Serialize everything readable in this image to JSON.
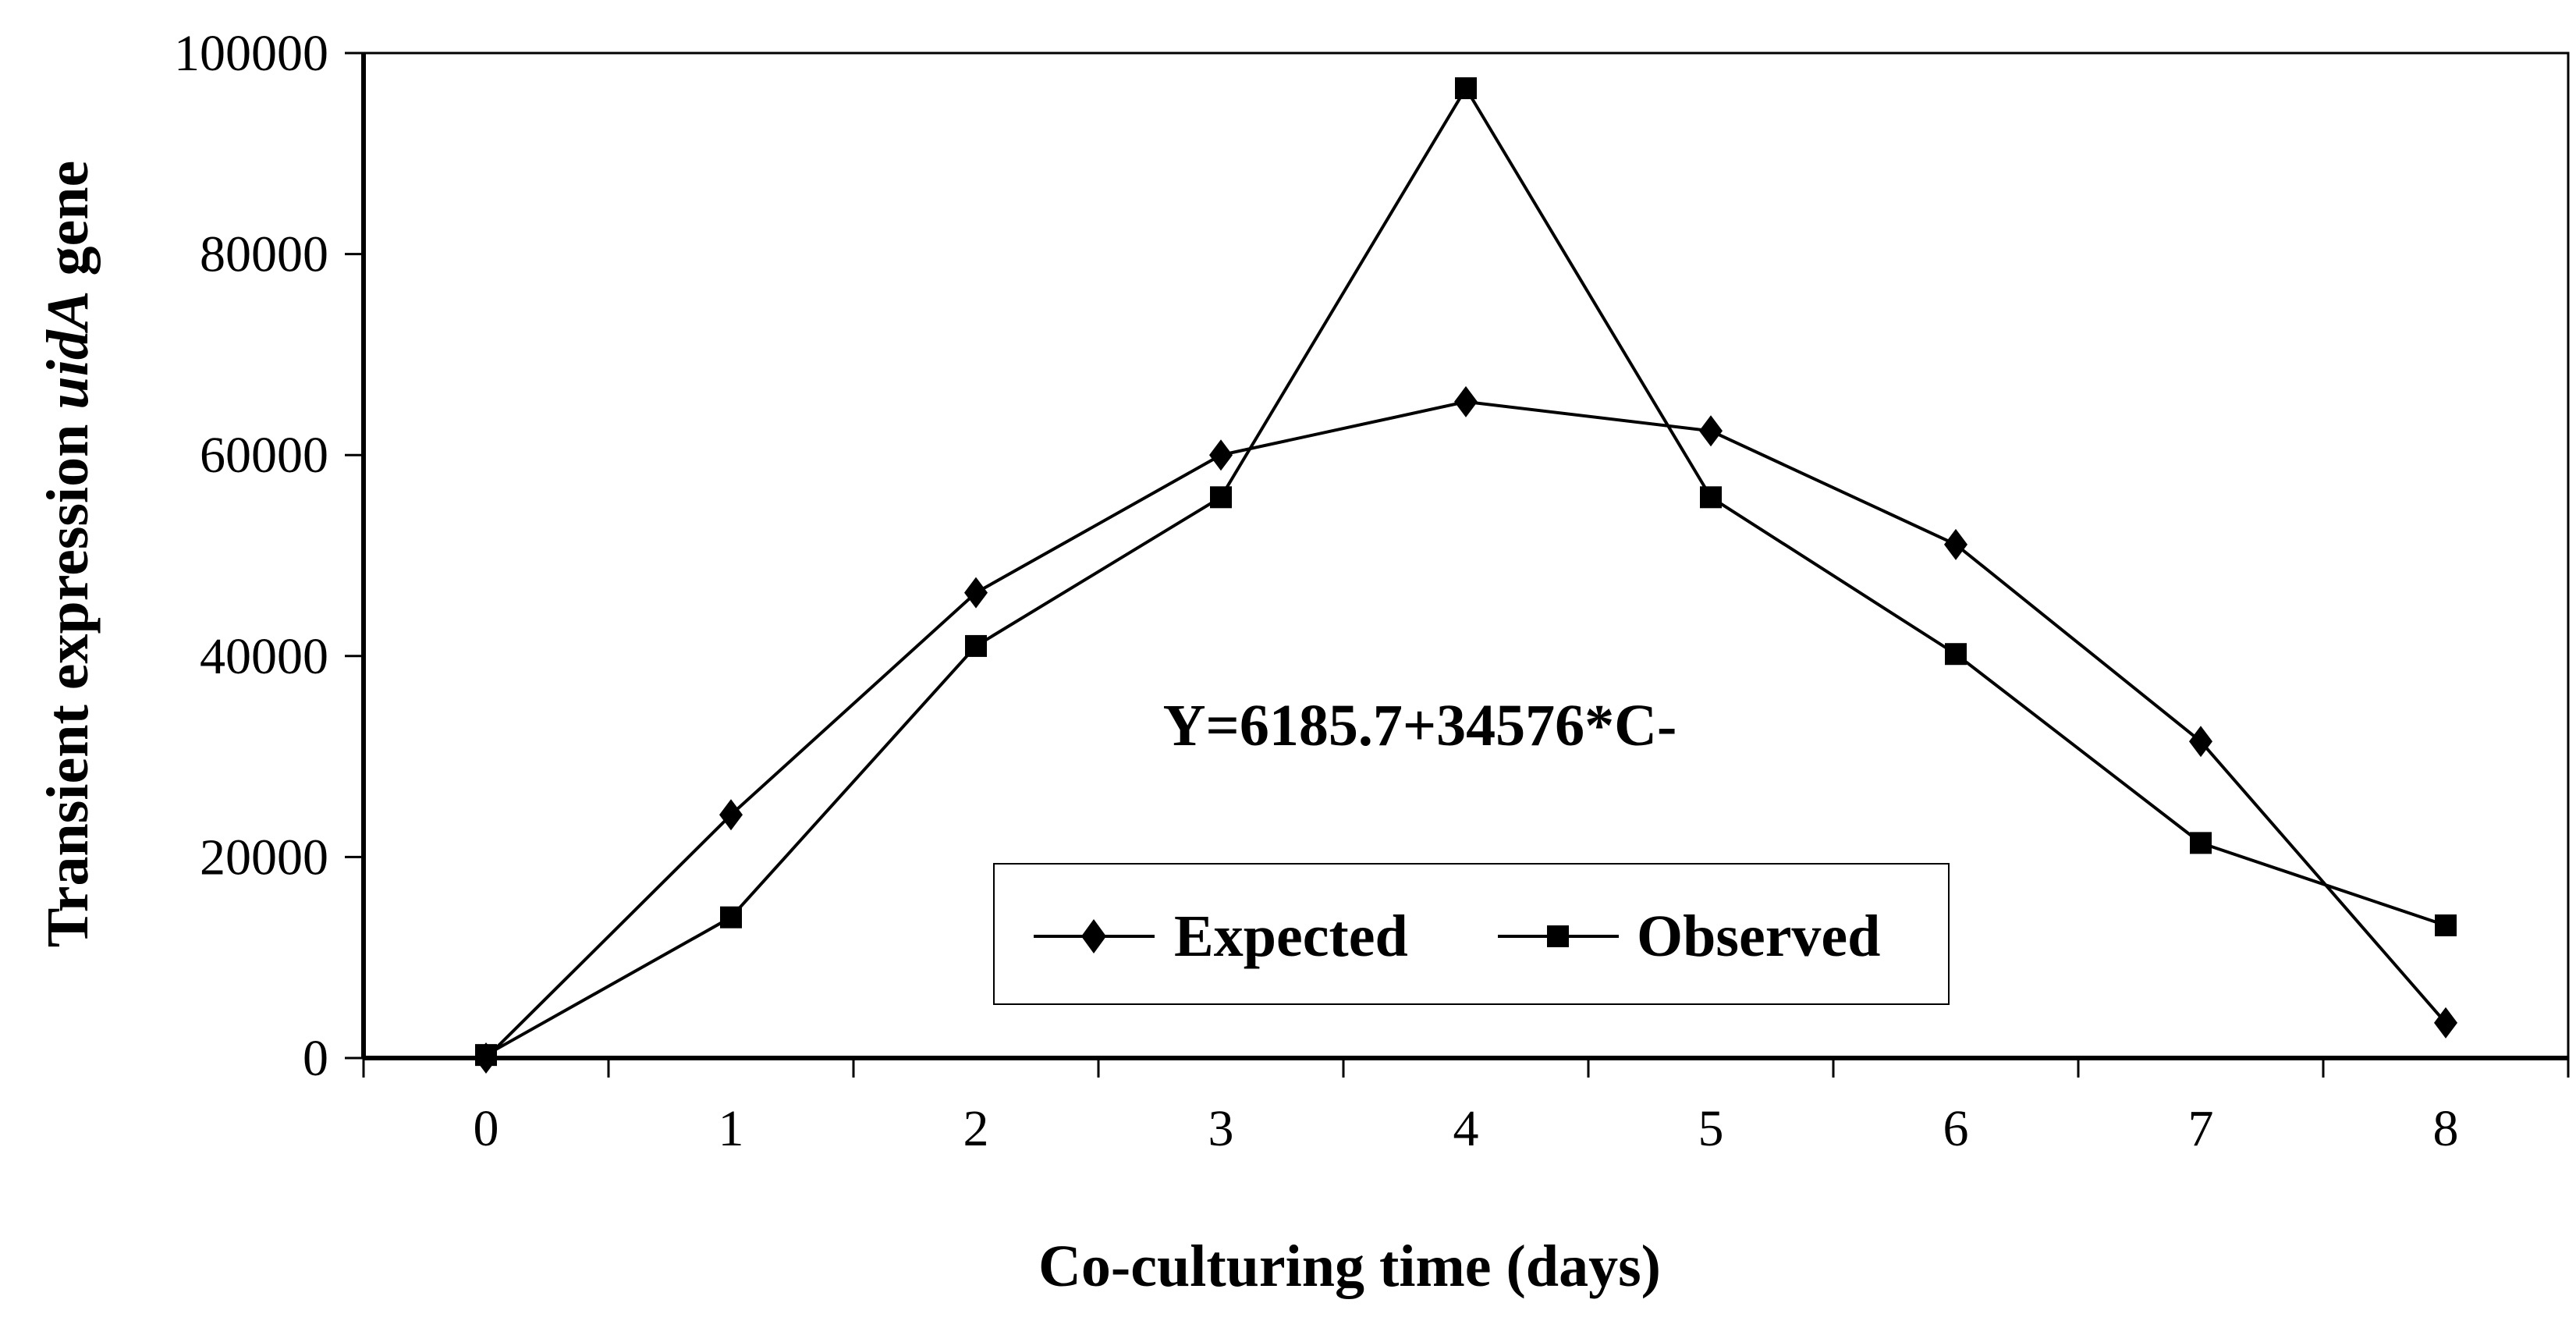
{
  "chart_data": {
    "type": "line",
    "title": "",
    "xlabel": "Co-culturing time (days)",
    "ylabel_parts": [
      "Transient expression ",
      "uidA",
      " gene"
    ],
    "categories": [
      "0",
      "1",
      "2",
      "3",
      "4",
      "5",
      "6",
      "7",
      "8"
    ],
    "ylim": [
      0,
      100000
    ],
    "yticks": [
      "0",
      "20000",
      "40000",
      "60000",
      "80000",
      "100000"
    ],
    "grid": false,
    "legend_placement": "bottom-center",
    "annotation": "Y=6185.7+34576*C-",
    "series": [
      {
        "name": "Expected",
        "marker": "diamond",
        "color": "#000000",
        "values": [
          0,
          24200,
          46300,
          60000,
          65300,
          62400,
          51100,
          31500,
          3500
        ]
      },
      {
        "name": "Observed",
        "marker": "square",
        "color": "#000000",
        "values": [
          300,
          14000,
          41000,
          55800,
          96500,
          55800,
          40200,
          21400,
          13200
        ]
      }
    ]
  }
}
